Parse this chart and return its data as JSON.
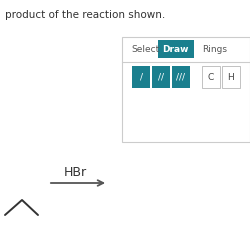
{
  "background_color": "#ffffff",
  "text_top": "product of the reaction shown.",
  "text_fontsize": 7.5,
  "text_color": "#333333",
  "reagent_label": "HBr",
  "reagent_fontsize": 9,
  "arrow_color": "#555555",
  "molecule_color": "#333333",
  "molecule_linewidth": 1.4,
  "panel_border_color": "#cccccc",
  "panel_bg": "#ffffff",
  "select_label": "Select",
  "draw_label": "Draw",
  "rings_label": "Rings",
  "tab_fontsize": 6.5,
  "draw_btn_color": "#1a7f8e",
  "draw_btn_text_color": "#ffffff",
  "select_text_color": "#555555",
  "rings_text_color": "#555555",
  "bond_btn_color": "#1a7f8e",
  "bond_btn_text_color": "#ffffff",
  "ch_btn_color": "#ffffff",
  "ch_btn_border": "#aaaaaa",
  "ch_text_color": "#444444",
  "btn_fontsize": 6.5
}
